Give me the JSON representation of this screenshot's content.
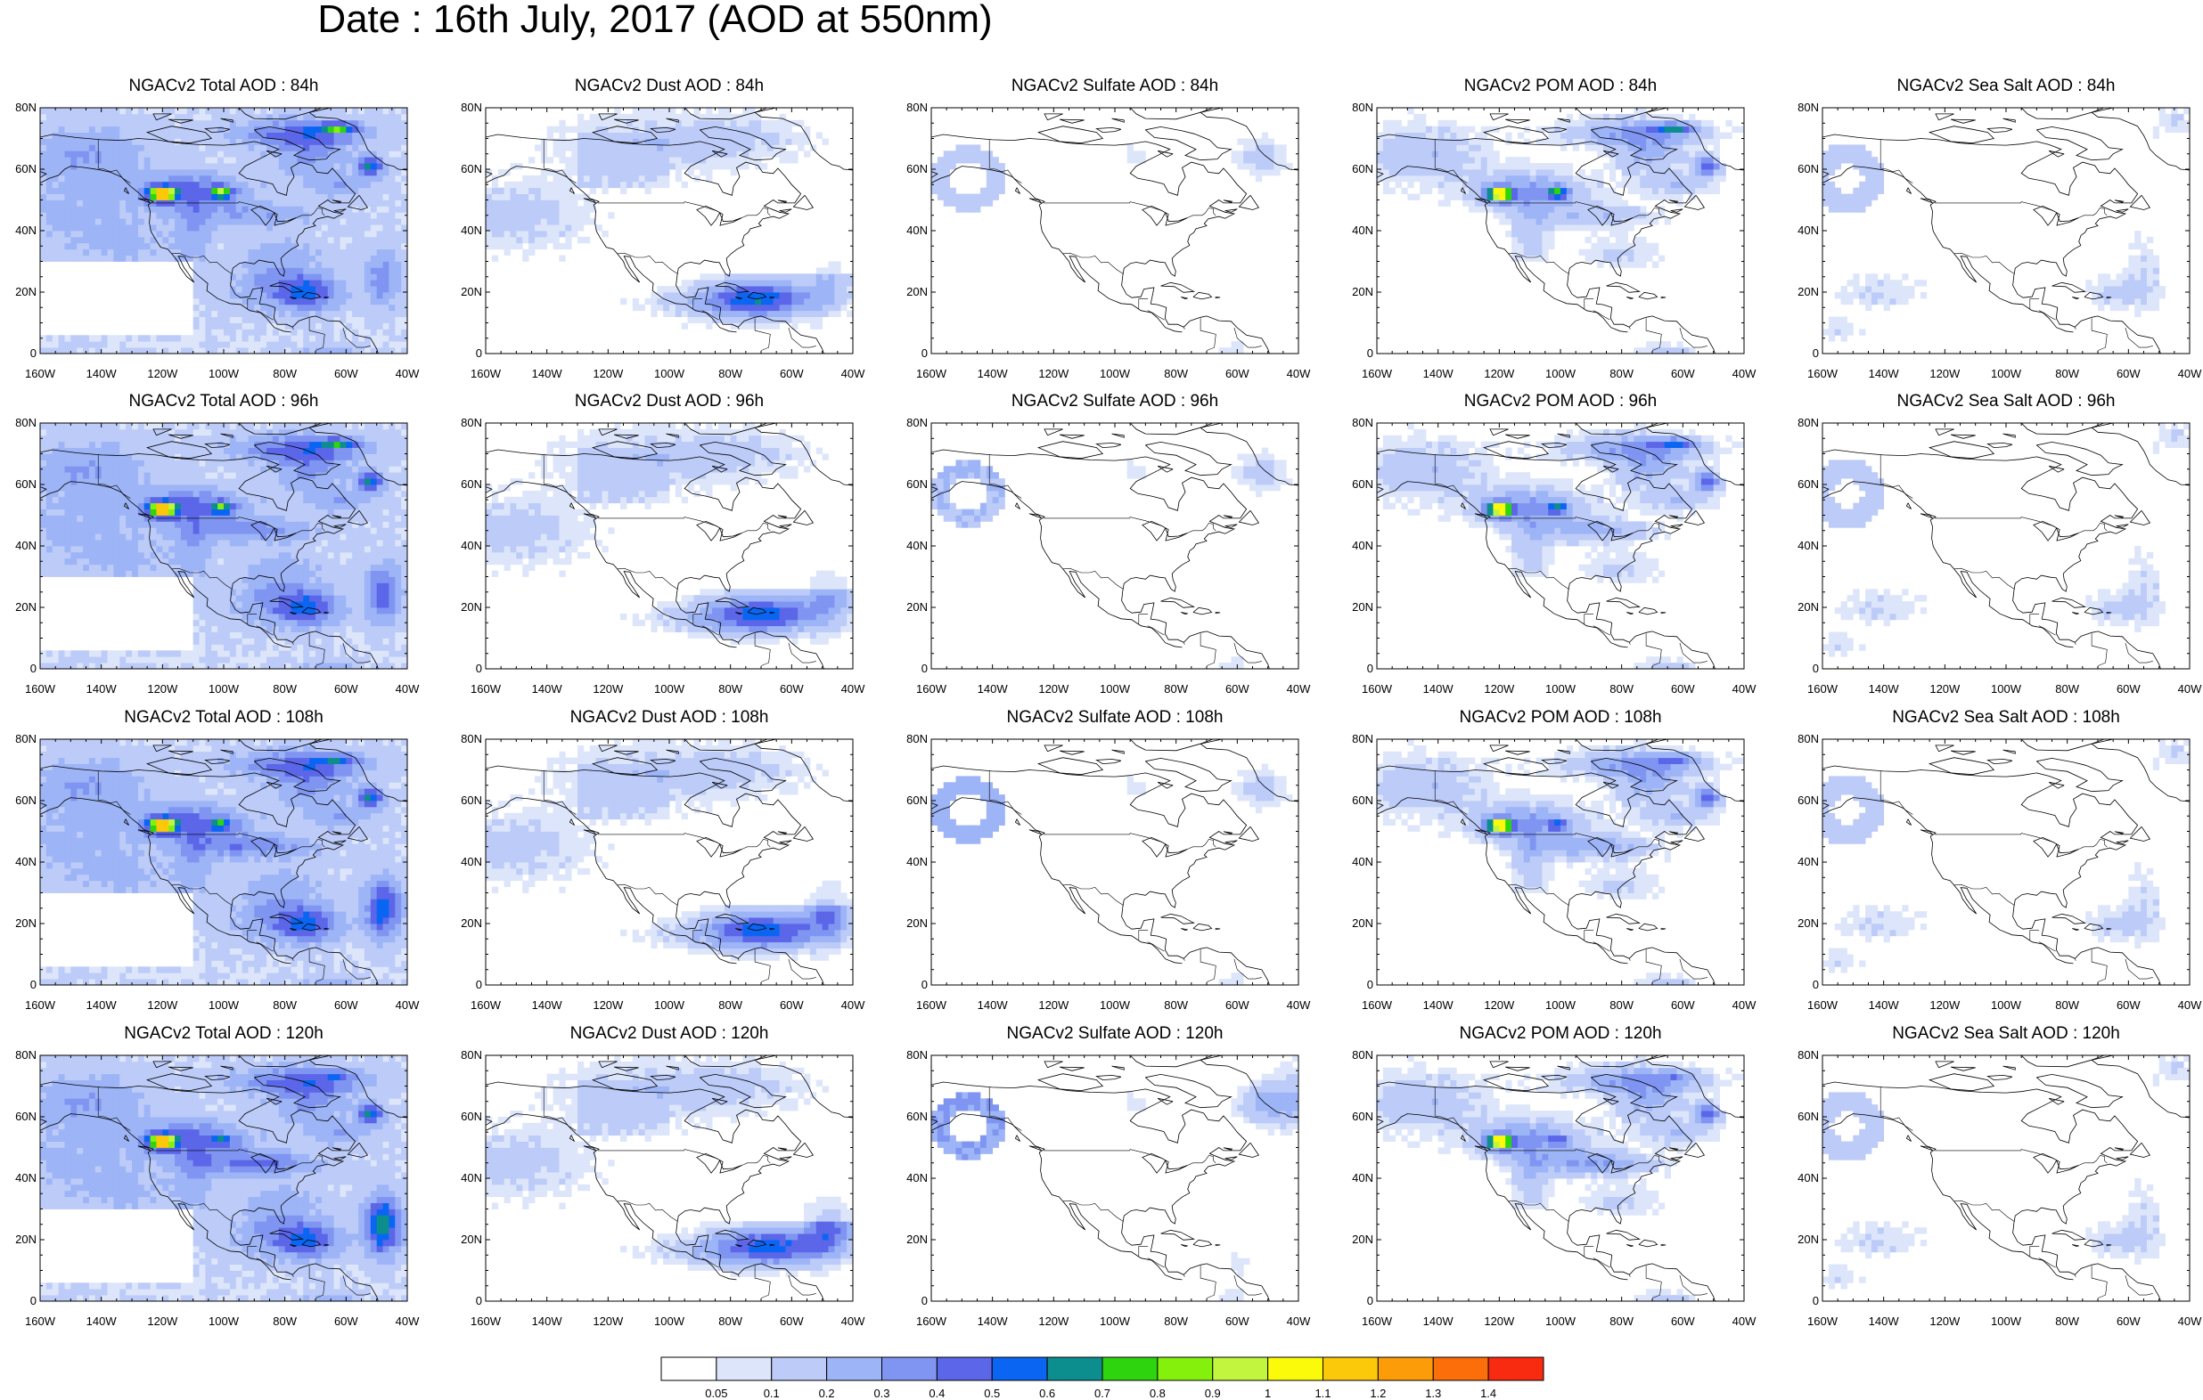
{
  "title": "Date : 16th July, 2017 (AOD at 550nm)",
  "lat_ticks": [
    "80N",
    "60N",
    "40N",
    "20N",
    "0"
  ],
  "lon_ticks": [
    "160W",
    "140W",
    "120W",
    "100W",
    "80W",
    "60W",
    "40W"
  ],
  "panels": [
    [
      {
        "title": "NGACv2 Total AOD : 84h",
        "species": "total"
      },
      {
        "title": "NGACv2 Dust AOD : 84h",
        "species": "dust"
      },
      {
        "title": "NGACv2 Sulfate AOD : 84h",
        "species": "sulfate"
      },
      {
        "title": "NGACv2 POM AOD : 84h",
        "species": "pom"
      },
      {
        "title": "NGACv2 Sea Salt AOD : 84h",
        "species": "seasalt"
      }
    ],
    [
      {
        "title": "NGACv2 Total AOD : 96h",
        "species": "total"
      },
      {
        "title": "NGACv2 Dust AOD : 96h",
        "species": "dust"
      },
      {
        "title": "NGACv2 Sulfate AOD : 96h",
        "species": "sulfate"
      },
      {
        "title": "NGACv2 POM AOD : 96h",
        "species": "pom"
      },
      {
        "title": "NGACv2 Sea Salt AOD : 96h",
        "species": "seasalt"
      }
    ],
    [
      {
        "title": "NGACv2 Total AOD : 108h",
        "species": "total"
      },
      {
        "title": "NGACv2 Dust AOD : 108h",
        "species": "dust"
      },
      {
        "title": "NGACv2 Sulfate AOD : 108h",
        "species": "sulfate"
      },
      {
        "title": "NGACv2 POM AOD : 108h",
        "species": "pom"
      },
      {
        "title": "NGACv2 Sea Salt AOD : 108h",
        "species": "seasalt"
      }
    ],
    [
      {
        "title": "NGACv2 Total AOD : 120h",
        "species": "total"
      },
      {
        "title": "NGACv2 Dust AOD : 120h",
        "species": "dust"
      },
      {
        "title": "NGACv2 Sulfate AOD : 120h",
        "species": "sulfate"
      },
      {
        "title": "NGACv2 POM AOD : 120h",
        "species": "pom"
      },
      {
        "title": "NGACv2 Sea Salt  AOD : 120h",
        "species": "seasalt"
      }
    ]
  ],
  "colorbar": {
    "labels": [
      "0.05",
      "0.1",
      "0.2",
      "0.3",
      "0.4",
      "0.5",
      "0.6",
      "0.7",
      "0.8",
      "0.9",
      "1",
      "1.1",
      "1.2",
      "1.3",
      "1.4"
    ],
    "colors": [
      "#ffffff",
      "#dce5fa",
      "#bccbf8",
      "#9db4f6",
      "#7f95f1",
      "#5b66e8",
      "#0a66f2",
      "#0c8e8e",
      "#2ed40e",
      "#84f00c",
      "#c2f63e",
      "#fafa0a",
      "#fcc80a",
      "#fc9c09",
      "#fc6e0a",
      "#f82a10"
    ]
  }
}
